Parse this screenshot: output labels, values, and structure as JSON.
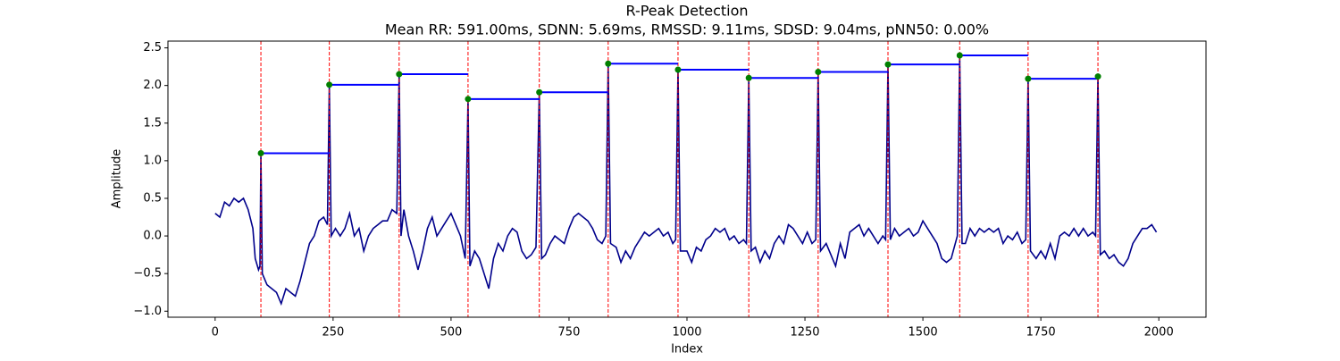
{
  "chart_data": {
    "type": "line",
    "title": "R-Peak Detection",
    "subtitle": "Mean RR: 591.00ms, SDNN: 5.69ms, RMSSD: 9.11ms, SDSD: 9.04ms, pNN50: 0.00%",
    "xlabel": "Index",
    "ylabel": "Amplitude",
    "xlim": [
      -100,
      2100
    ],
    "ylim": [
      -1.08,
      2.59
    ],
    "xticks": [
      0,
      250,
      500,
      750,
      1000,
      1250,
      1500,
      1750,
      2000
    ],
    "yticks": [
      {
        "value": -1.0,
        "label": "−1.0"
      },
      {
        "value": -0.5,
        "label": "−0.5"
      },
      {
        "value": 0.0,
        "label": "0.0"
      },
      {
        "value": 0.5,
        "label": "0.5"
      },
      {
        "value": 1.0,
        "label": "1.0"
      },
      {
        "value": 1.5,
        "label": "1.5"
      },
      {
        "value": 2.0,
        "label": "2.0"
      },
      {
        "value": 2.5,
        "label": "2.5"
      }
    ],
    "x": [
      0,
      10,
      20,
      30,
      40,
      50,
      60,
      70,
      80,
      85,
      92,
      95,
      97,
      100,
      110,
      120,
      130,
      140,
      150,
      160,
      170,
      180,
      190,
      200,
      210,
      220,
      230,
      238,
      242,
      246,
      255,
      265,
      275,
      285,
      295,
      305,
      315,
      325,
      335,
      345,
      355,
      365,
      375,
      385,
      390,
      394,
      400,
      410,
      420,
      430,
      440,
      450,
      460,
      470,
      480,
      490,
      500,
      510,
      520,
      530,
      536,
      540,
      550,
      560,
      570,
      580,
      590,
      600,
      610,
      620,
      630,
      640,
      650,
      660,
      670,
      680,
      687,
      692,
      700,
      710,
      720,
      730,
      740,
      750,
      760,
      770,
      780,
      790,
      800,
      810,
      820,
      828,
      833,
      838,
      850,
      860,
      870,
      880,
      890,
      900,
      910,
      920,
      930,
      940,
      950,
      960,
      970,
      976,
      981,
      986,
      1000,
      1010,
      1020,
      1030,
      1040,
      1050,
      1060,
      1070,
      1080,
      1090,
      1100,
      1110,
      1120,
      1126,
      1131,
      1136,
      1145,
      1155,
      1165,
      1175,
      1185,
      1195,
      1205,
      1215,
      1225,
      1235,
      1245,
      1255,
      1265,
      1273,
      1278,
      1283,
      1295,
      1305,
      1315,
      1325,
      1335,
      1345,
      1355,
      1365,
      1375,
      1385,
      1395,
      1405,
      1415,
      1421,
      1426,
      1431,
      1440,
      1450,
      1460,
      1470,
      1480,
      1490,
      1500,
      1510,
      1520,
      1530,
      1540,
      1550,
      1560,
      1573,
      1578,
      1583,
      1590,
      1600,
      1610,
      1620,
      1630,
      1640,
      1650,
      1660,
      1670,
      1680,
      1690,
      1700,
      1710,
      1718,
      1723,
      1728,
      1740,
      1750,
      1760,
      1770,
      1780,
      1790,
      1800,
      1810,
      1820,
      1830,
      1840,
      1850,
      1860,
      1866,
      1871,
      1876,
      1885,
      1895,
      1905,
      1915,
      1925,
      1935,
      1945,
      1955,
      1965,
      1975,
      1985,
      1995
    ],
    "series": [
      {
        "color": "#00008b",
        "values": [
          0.3,
          0.25,
          0.45,
          0.4,
          0.5,
          0.45,
          0.5,
          0.35,
          0.1,
          -0.3,
          -0.45,
          -0.4,
          1.1,
          -0.5,
          -0.65,
          -0.7,
          -0.75,
          -0.9,
          -0.7,
          -0.75,
          -0.8,
          -0.6,
          -0.35,
          -0.1,
          0.0,
          0.2,
          0.25,
          0.15,
          2.01,
          0.0,
          0.1,
          0.0,
          0.1,
          0.3,
          0.0,
          0.1,
          -0.2,
          0.0,
          0.1,
          0.15,
          0.2,
          0.2,
          0.35,
          0.3,
          2.15,
          0.0,
          0.35,
          0.0,
          -0.2,
          -0.45,
          -0.2,
          0.1,
          0.25,
          0.0,
          0.1,
          0.2,
          0.3,
          0.15,
          0.0,
          -0.3,
          1.82,
          -0.4,
          -0.2,
          -0.3,
          -0.5,
          -0.7,
          -0.3,
          -0.1,
          -0.2,
          0.0,
          0.1,
          0.05,
          -0.2,
          -0.3,
          -0.25,
          -0.15,
          1.91,
          -0.3,
          -0.25,
          -0.1,
          0.0,
          -0.05,
          -0.1,
          0.1,
          0.25,
          0.3,
          0.25,
          0.2,
          0.1,
          -0.05,
          -0.1,
          0.0,
          2.29,
          -0.1,
          -0.15,
          -0.35,
          -0.2,
          -0.3,
          -0.15,
          -0.05,
          0.05,
          0.0,
          0.05,
          0.1,
          0.0,
          0.05,
          -0.1,
          -0.05,
          2.21,
          -0.2,
          -0.2,
          -0.35,
          -0.15,
          -0.2,
          -0.05,
          0.0,
          0.1,
          0.05,
          0.1,
          -0.05,
          0.0,
          -0.1,
          -0.05,
          -0.1,
          2.1,
          -0.2,
          -0.15,
          -0.35,
          -0.2,
          -0.3,
          -0.1,
          0.0,
          -0.1,
          0.15,
          0.1,
          0.0,
          -0.1,
          0.05,
          -0.1,
          -0.05,
          2.18,
          -0.2,
          -0.1,
          -0.25,
          -0.4,
          -0.1,
          -0.3,
          0.05,
          0.1,
          0.15,
          0.0,
          0.1,
          0.0,
          -0.1,
          0.0,
          -0.05,
          2.28,
          -0.05,
          0.1,
          0.0,
          0.05,
          0.1,
          0.0,
          0.05,
          0.2,
          0.1,
          0.0,
          -0.1,
          -0.3,
          -0.35,
          -0.3,
          0.0,
          2.4,
          -0.1,
          -0.1,
          0.1,
          0.0,
          0.1,
          0.05,
          0.1,
          0.05,
          0.1,
          -0.1,
          0.0,
          -0.05,
          0.05,
          -0.1,
          -0.05,
          2.09,
          -0.2,
          -0.3,
          -0.2,
          -0.3,
          -0.1,
          -0.3,
          0.0,
          0.05,
          0.0,
          0.1,
          0.0,
          0.1,
          0.0,
          0.05,
          0.0,
          2.12,
          -0.25,
          -0.2,
          -0.3,
          -0.25,
          -0.35,
          -0.4,
          -0.3,
          -0.1,
          0.0,
          0.1,
          0.1,
          0.15,
          0.05
        ]
      }
    ],
    "peaks": {
      "color": "green",
      "x": [
        97,
        242,
        390,
        536,
        687,
        833,
        981,
        1131,
        1278,
        1426,
        1578,
        1723,
        1871
      ],
      "values": [
        1.1,
        2.01,
        2.15,
        1.82,
        1.91,
        2.29,
        2.21,
        2.1,
        2.18,
        2.28,
        2.4,
        2.09,
        2.12
      ]
    },
    "peak_line_color": "red",
    "interval_color": "blue"
  }
}
